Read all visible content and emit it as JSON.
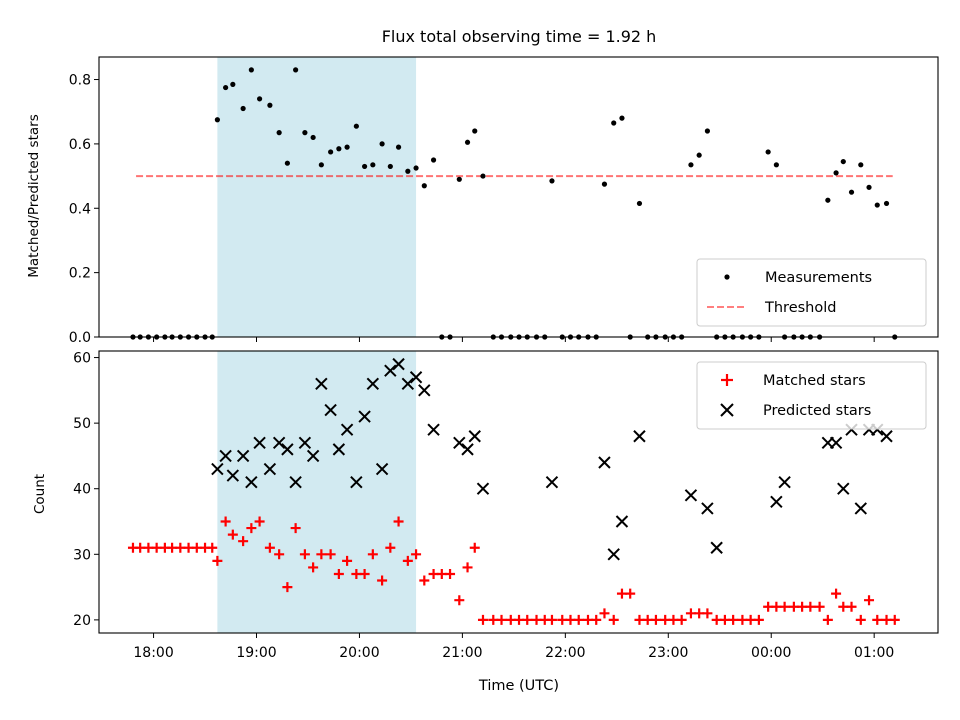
{
  "title": "Flux total observing time = 1.92 h",
  "chart_data": [
    {
      "type": "scatter",
      "ylabel": "Matched/Predicted stars",
      "ylim": [
        0,
        0.87
      ],
      "yticks": [
        0.0,
        0.2,
        0.4,
        0.6,
        0.8
      ],
      "ytick_labels": [
        "0.0",
        "0.2",
        "0.4",
        "0.6",
        "0.8"
      ],
      "xlim": [
        17.47,
        25.62
      ],
      "highlight_span": [
        18.62,
        20.55
      ],
      "highlight_color": "#add8e6",
      "threshold": {
        "value": 0.5,
        "x_range": [
          17.83,
          25.18
        ],
        "color": "#ff0000",
        "label": "Threshold"
      },
      "legend_loc": "lower right",
      "series": [
        {
          "name": "Measurements",
          "marker": "dot",
          "color": "#000000",
          "x": [
            17.8,
            17.87,
            17.95,
            18.03,
            18.11,
            18.18,
            18.26,
            18.34,
            18.42,
            18.5,
            18.57,
            18.62,
            18.7,
            18.77,
            18.87,
            18.95,
            19.03,
            19.13,
            19.22,
            19.3,
            19.38,
            19.47,
            19.55,
            19.63,
            19.72,
            19.8,
            19.88,
            19.97,
            20.05,
            20.13,
            20.22,
            20.3,
            20.38,
            20.47,
            20.55,
            20.63,
            20.72,
            20.8,
            20.88,
            20.97,
            21.05,
            21.12,
            21.2,
            21.3,
            21.38,
            21.47,
            21.55,
            21.63,
            21.72,
            21.8,
            21.87,
            21.97,
            22.05,
            22.13,
            22.22,
            22.3,
            22.38,
            22.47,
            22.55,
            22.63,
            22.72,
            22.8,
            22.88,
            22.97,
            23.05,
            23.13,
            23.22,
            23.3,
            23.38,
            23.47,
            23.55,
            23.63,
            23.72,
            23.8,
            23.88,
            23.97,
            24.05,
            24.13,
            24.22,
            24.3,
            24.38,
            24.47,
            24.55,
            24.63,
            24.7,
            24.78,
            24.87,
            24.95,
            25.03,
            25.12,
            25.2
          ],
          "y": [
            0,
            0,
            0,
            0,
            0,
            0,
            0,
            0,
            0,
            0,
            0,
            0.675,
            0.775,
            0.785,
            0.71,
            0.83,
            0.74,
            0.72,
            0.635,
            0.54,
            0.83,
            0.635,
            0.62,
            0.535,
            0.575,
            0.585,
            0.59,
            0.655,
            0.53,
            0.535,
            0.6,
            0.53,
            0.59,
            0.515,
            0.525,
            0.47,
            0.55,
            0,
            0,
            0.49,
            0.605,
            0.64,
            0.5,
            0,
            0,
            0,
            0,
            0,
            0,
            0,
            0.485,
            0,
            0,
            0,
            0,
            0,
            0.475,
            0.665,
            0.68,
            0,
            0.415,
            0,
            0,
            0,
            0,
            0,
            0.535,
            0.565,
            0.64,
            0,
            0,
            0,
            0,
            0,
            0,
            0.575,
            0.535,
            0,
            0,
            0,
            0,
            0,
            0.425,
            0.51,
            0.545,
            0.45,
            0.535,
            0.465,
            0.41,
            0.415,
            0
          ]
        }
      ]
    },
    {
      "type": "scatter",
      "xlabel": "Time (UTC)",
      "ylabel": "Count",
      "ylim": [
        18,
        61
      ],
      "yticks": [
        20,
        30,
        40,
        50,
        60
      ],
      "ytick_labels": [
        "20",
        "30",
        "40",
        "50",
        "60"
      ],
      "xlim": [
        17.47,
        25.62
      ],
      "xticks": [
        18,
        19,
        20,
        21,
        22,
        23,
        24,
        25
      ],
      "xtick_labels": [
        "18:00",
        "19:00",
        "20:00",
        "21:00",
        "22:00",
        "23:00",
        "00:00",
        "01:00"
      ],
      "highlight_span": [
        18.62,
        20.55
      ],
      "highlight_color": "#add8e6",
      "legend_loc": "upper right",
      "series": [
        {
          "name": "Matched stars",
          "marker": "plus",
          "color": "#ff0000",
          "x": [
            17.8,
            17.87,
            17.95,
            18.03,
            18.11,
            18.18,
            18.26,
            18.34,
            18.42,
            18.5,
            18.57,
            18.62,
            18.7,
            18.77,
            18.87,
            18.95,
            19.03,
            19.13,
            19.22,
            19.3,
            19.38,
            19.47,
            19.55,
            19.63,
            19.72,
            19.8,
            19.88,
            19.97,
            20.05,
            20.13,
            20.22,
            20.3,
            20.38,
            20.47,
            20.55,
            20.63,
            20.72,
            20.8,
            20.88,
            20.97,
            21.05,
            21.12,
            21.2,
            21.3,
            21.38,
            21.47,
            21.55,
            21.63,
            21.72,
            21.8,
            21.87,
            21.97,
            22.05,
            22.13,
            22.22,
            22.3,
            22.38,
            22.47,
            22.55,
            22.63,
            22.72,
            22.8,
            22.88,
            22.97,
            23.05,
            23.13,
            23.22,
            23.3,
            23.38,
            23.47,
            23.55,
            23.63,
            23.72,
            23.8,
            23.88,
            23.97,
            24.05,
            24.13,
            24.22,
            24.3,
            24.38,
            24.47,
            24.55,
            24.63,
            24.7,
            24.78,
            24.87,
            24.95,
            25.03,
            25.12,
            25.2
          ],
          "y": [
            31,
            31,
            31,
            31,
            31,
            31,
            31,
            31,
            31,
            31,
            31,
            29,
            35,
            33,
            32,
            34,
            35,
            31,
            30,
            25,
            34,
            30,
            28,
            30,
            30,
            27,
            29,
            27,
            27,
            30,
            26,
            31,
            35,
            29,
            30,
            26,
            27,
            27,
            27,
            23,
            28,
            31,
            20,
            20,
            20,
            20,
            20,
            20,
            20,
            20,
            20,
            20,
            20,
            20,
            20,
            20,
            21,
            20,
            24,
            24,
            20,
            20,
            20,
            20,
            20,
            20,
            21,
            21,
            21,
            20,
            20,
            20,
            20,
            20,
            20,
            22,
            22,
            22,
            22,
            22,
            22,
            22,
            20,
            24,
            22,
            22,
            20,
            23,
            20,
            20,
            20
          ]
        },
        {
          "name": "Predicted stars",
          "marker": "x",
          "color": "#000000",
          "x": [
            18.62,
            18.7,
            18.77,
            18.87,
            18.95,
            19.03,
            19.13,
            19.22,
            19.3,
            19.38,
            19.47,
            19.55,
            19.63,
            19.72,
            19.8,
            19.88,
            19.97,
            20.05,
            20.13,
            20.22,
            20.3,
            20.38,
            20.47,
            20.55,
            20.63,
            20.72,
            20.97,
            21.05,
            21.12,
            21.2,
            21.87,
            22.38,
            22.47,
            22.55,
            22.72,
            23.22,
            23.38,
            23.47,
            24.05,
            24.13,
            24.55,
            24.63,
            24.7,
            24.78,
            24.87,
            24.95,
            25.03,
            25.12
          ],
          "y": [
            43,
            45,
            42,
            45,
            41,
            47,
            43,
            47,
            46,
            41,
            47,
            45,
            56,
            52,
            46,
            49,
            41,
            51,
            56,
            43,
            58,
            59,
            56,
            57,
            55,
            49,
            47,
            46,
            48,
            40,
            41,
            44,
            30,
            35,
            48,
            39,
            37,
            31,
            38,
            41,
            47,
            47,
            40,
            49,
            37,
            49,
            49,
            48
          ]
        }
      ]
    }
  ]
}
